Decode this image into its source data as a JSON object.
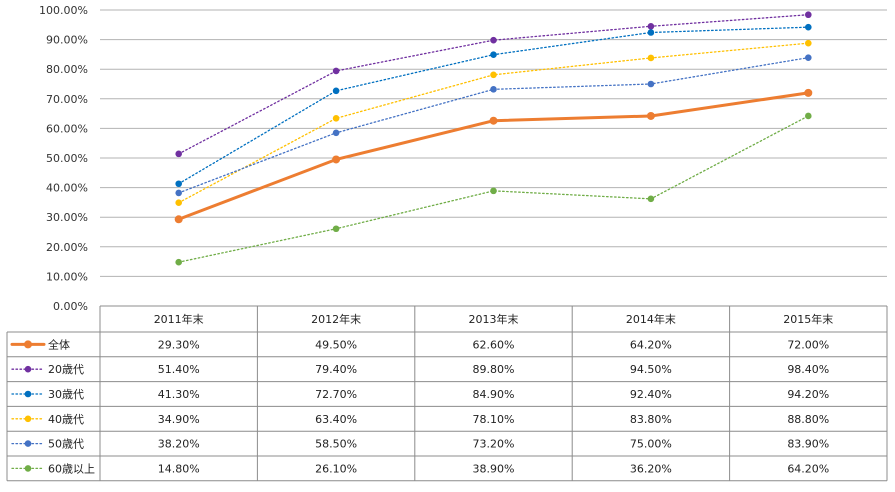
{
  "chart_data": {
    "type": "line",
    "categories": [
      "2011年末",
      "2012年末",
      "2013年末",
      "2014年末",
      "2015年末"
    ],
    "ylim": [
      0,
      100
    ],
    "ytick_labels": [
      "0.00%",
      "10.00%",
      "20.00%",
      "30.00%",
      "40.00%",
      "50.00%",
      "60.00%",
      "70.00%",
      "80.00%",
      "90.00%",
      "100.00%"
    ],
    "grid": true,
    "series": [
      {
        "name": "全体",
        "color": "#ED7D31",
        "style": "solid",
        "values": [
          29.3,
          49.5,
          62.6,
          64.2,
          72.0
        ],
        "labels": [
          "29.30%",
          "49.50%",
          "62.60%",
          "64.20%",
          "72.00%"
        ]
      },
      {
        "name": "20歳代",
        "color": "#7030A0",
        "style": "dotted",
        "values": [
          51.4,
          79.4,
          89.8,
          94.5,
          98.4
        ],
        "labels": [
          "51.40%",
          "79.40%",
          "89.80%",
          "94.50%",
          "98.40%"
        ]
      },
      {
        "name": "30歳代",
        "color": "#0070C0",
        "style": "dotted",
        "values": [
          41.3,
          72.7,
          84.9,
          92.4,
          94.2
        ],
        "labels": [
          "41.30%",
          "72.70%",
          "84.90%",
          "92.40%",
          "94.20%"
        ]
      },
      {
        "name": "40歳代",
        "color": "#FFC000",
        "style": "dotted",
        "values": [
          34.9,
          63.4,
          78.1,
          83.8,
          88.8
        ],
        "labels": [
          "34.90%",
          "63.40%",
          "78.10%",
          "83.80%",
          "88.80%"
        ]
      },
      {
        "name": "50歳代",
        "color": "#4472C4",
        "style": "dotted",
        "values": [
          38.2,
          58.5,
          73.2,
          75.0,
          83.9
        ],
        "labels": [
          "38.20%",
          "58.50%",
          "73.20%",
          "75.00%",
          "83.90%"
        ]
      },
      {
        "name": "60歳以上",
        "color": "#70AD47",
        "style": "dotted",
        "values": [
          14.8,
          26.1,
          38.9,
          36.2,
          64.2
        ],
        "labels": [
          "14.80%",
          "26.10%",
          "38.90%",
          "36.20%",
          "64.20%"
        ]
      }
    ]
  }
}
